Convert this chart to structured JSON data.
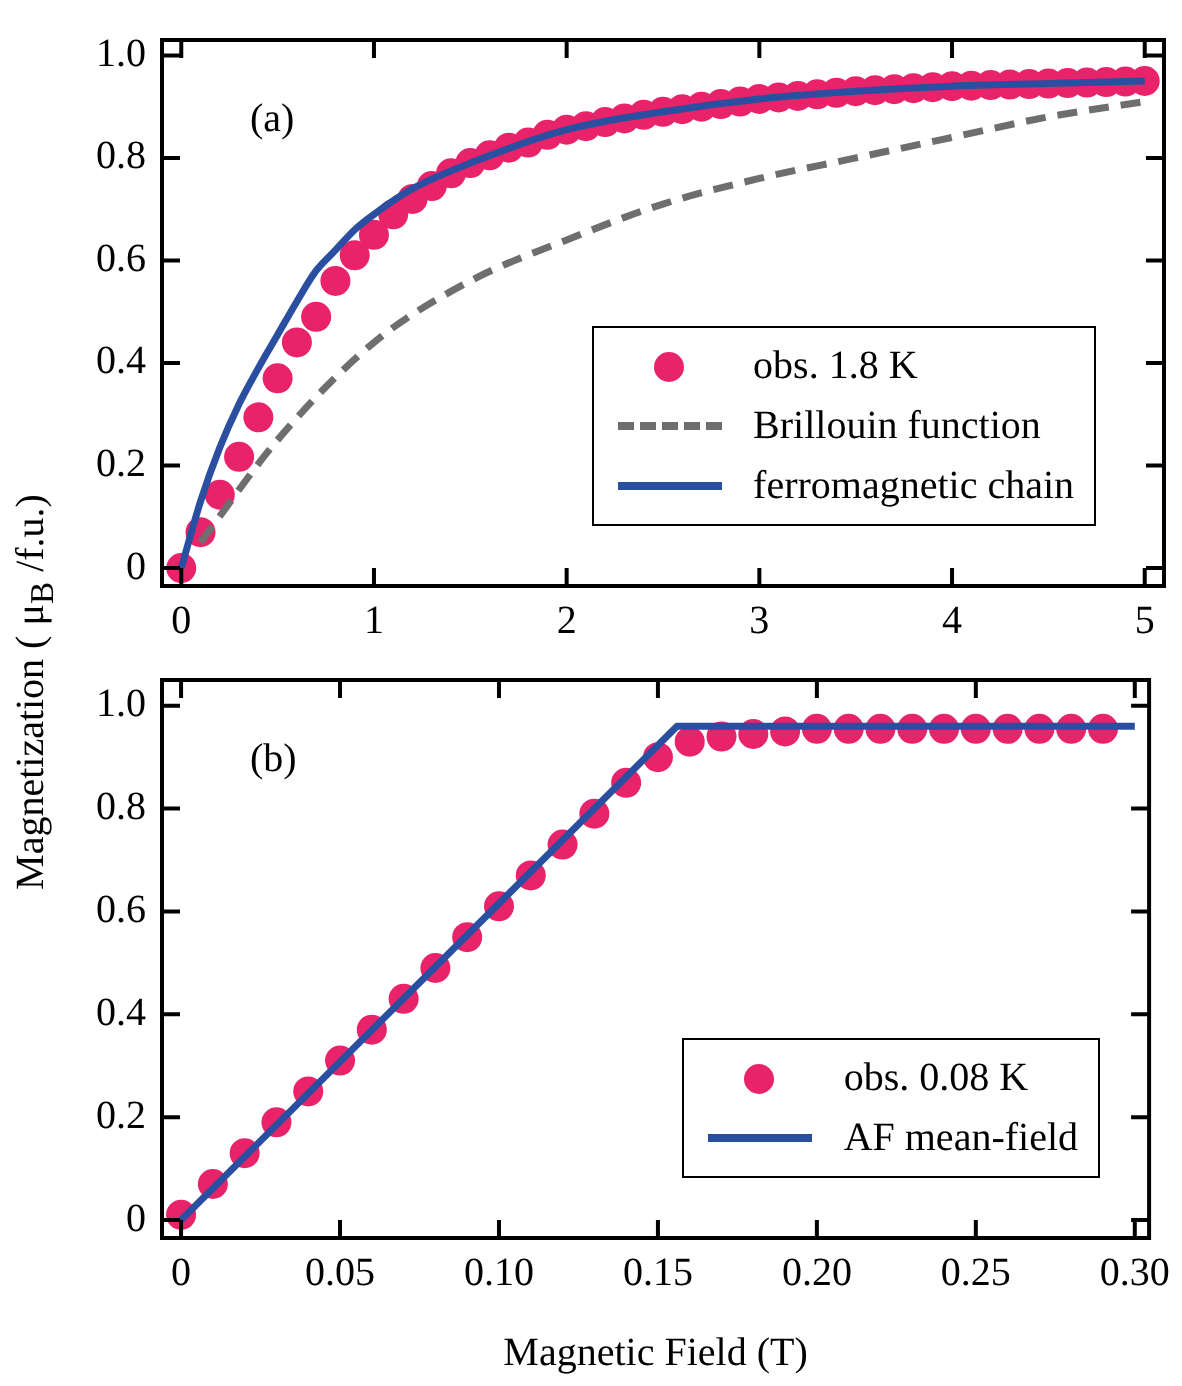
{
  "chart_data": [
    {
      "type": "line",
      "ylabel": "Magnetization ( μ$_{B}$ /f.u.)",
      "annotations": [
        "(a)"
      ],
      "grid": false,
      "legend": "bottom right",
      "xlim": [
        -0.1,
        5.1
      ],
      "xticks": [
        0,
        1,
        2,
        3,
        4,
        5
      ],
      "ylim": [
        -0.035,
        1.03
      ],
      "yticks": [
        0,
        {
          "value": 0.2,
          "label": "0.2"
        },
        {
          "value": 0.4,
          "label": "0.4"
        },
        {
          "value": 0.6,
          "label": "0.6"
        },
        {
          "value": 0.8,
          "label": "0.8"
        },
        {
          "value": 1,
          "label": "1.0"
        }
      ],
      "series": [
        {
          "name": "obs. 1.8 K",
          "type": "scatter",
          "marker": "circle",
          "color": "#e8236a",
          "x": [
            0,
            0.1,
            0.2,
            0.3,
            0.4,
            0.5,
            0.6,
            0.7,
            0.8,
            0.9,
            1.0,
            1.1,
            1.2,
            1.3,
            1.4,
            1.5,
            1.6,
            1.7,
            1.8,
            1.9,
            2.0,
            2.1,
            2.2,
            2.3,
            2.4,
            2.5,
            2.6,
            2.7,
            2.8,
            2.9,
            3.0,
            3.1,
            3.2,
            3.3,
            3.4,
            3.5,
            3.6,
            3.7,
            3.8,
            3.9,
            4.0,
            4.1,
            4.2,
            4.3,
            4.4,
            4.5,
            4.6,
            4.7,
            4.8,
            4.9,
            5.0
          ],
          "values": [
            0,
            0.07,
            0.143,
            0.217,
            0.294,
            0.37,
            0.44,
            0.49,
            0.56,
            0.61,
            0.65,
            0.69,
            0.72,
            0.745,
            0.77,
            0.79,
            0.805,
            0.82,
            0.83,
            0.845,
            0.855,
            0.862,
            0.87,
            0.877,
            0.884,
            0.89,
            0.895,
            0.9,
            0.905,
            0.91,
            0.915,
            0.918,
            0.921,
            0.924,
            0.927,
            0.93,
            0.932,
            0.934,
            0.936,
            0.938,
            0.94,
            0.941,
            0.942,
            0.943,
            0.944,
            0.945,
            0.946,
            0.947,
            0.948,
            0.949,
            0.95
          ]
        },
        {
          "name": "Brillouin function",
          "type": "line",
          "marker": "none",
          "line_style": "dashed",
          "color": "#6e6e6e",
          "x": [
            0.1,
            0.5,
            1.0,
            1.5,
            2.0,
            2.5,
            3.0,
            3.5,
            4.0,
            4.5,
            5.0
          ],
          "values": [
            0.05,
            0.25,
            0.44,
            0.56,
            0.64,
            0.71,
            0.76,
            0.8,
            0.84,
            0.88,
            0.91
          ]
        },
        {
          "name": "ferromagnetic chain",
          "type": "line",
          "marker": "none",
          "line_style": "solid",
          "color": "#2b4fa0",
          "x": [
            0,
            0.1,
            0.2,
            0.3,
            0.4,
            0.5,
            0.6,
            0.7,
            0.8,
            0.9,
            1.0,
            1.2,
            1.5,
            2.0,
            2.5,
            3.0,
            3.5,
            4.0,
            4.5,
            5.0
          ],
          "values": [
            0,
            0.13,
            0.235,
            0.32,
            0.39,
            0.455,
            0.52,
            0.58,
            0.62,
            0.66,
            0.69,
            0.74,
            0.79,
            0.855,
            0.89,
            0.915,
            0.93,
            0.94,
            0.945,
            0.95
          ]
        }
      ]
    },
    {
      "type": "line",
      "xlabel": "Magnetic Field (T)",
      "annotations": [
        "(b)"
      ],
      "grid": false,
      "legend": "bottom right",
      "xlim": [
        -0.006,
        0.3045
      ],
      "xticks": [
        0,
        0.05,
        {
          "value": 0.1,
          "label": "0.10"
        },
        0.15,
        {
          "value": 0.2,
          "label": "0.20"
        },
        0.25,
        {
          "value": 0.3,
          "label": "0.30"
        }
      ],
      "ylim": [
        -0.035,
        1.05
      ],
      "yticks": [
        0,
        {
          "value": 0.2,
          "label": "0.2"
        },
        {
          "value": 0.4,
          "label": "0.4"
        },
        {
          "value": 0.6,
          "label": "0.6"
        },
        {
          "value": 0.8,
          "label": "0.8"
        },
        {
          "value": 1,
          "label": "1.0"
        }
      ],
      "series": [
        {
          "name": "obs. 0.08 K",
          "type": "scatter",
          "marker": "circle",
          "color": "#e8236a",
          "x": [
            0,
            0.01,
            0.02,
            0.03,
            0.04,
            0.05,
            0.06,
            0.07,
            0.08,
            0.09,
            0.1,
            0.11,
            0.12,
            0.13,
            0.14,
            0.15,
            0.16,
            0.17,
            0.18,
            0.19,
            0.2,
            0.21,
            0.22,
            0.23,
            0.24,
            0.25,
            0.26,
            0.27,
            0.28,
            0.29
          ],
          "values": [
            0.01,
            0.07,
            0.13,
            0.19,
            0.25,
            0.31,
            0.37,
            0.43,
            0.49,
            0.55,
            0.61,
            0.67,
            0.73,
            0.79,
            0.85,
            0.9,
            0.93,
            0.94,
            0.945,
            0.95,
            0.955,
            0.955,
            0.955,
            0.955,
            0.955,
            0.955,
            0.955,
            0.955,
            0.955,
            0.955
          ]
        },
        {
          "name": "AF mean-field",
          "type": "line",
          "marker": "none",
          "line_style": "solid",
          "color": "#2b4fa0",
          "x": [
            0,
            0.156,
            0.3
          ],
          "values": [
            0,
            0.96,
            0.96
          ]
        }
      ]
    }
  ]
}
